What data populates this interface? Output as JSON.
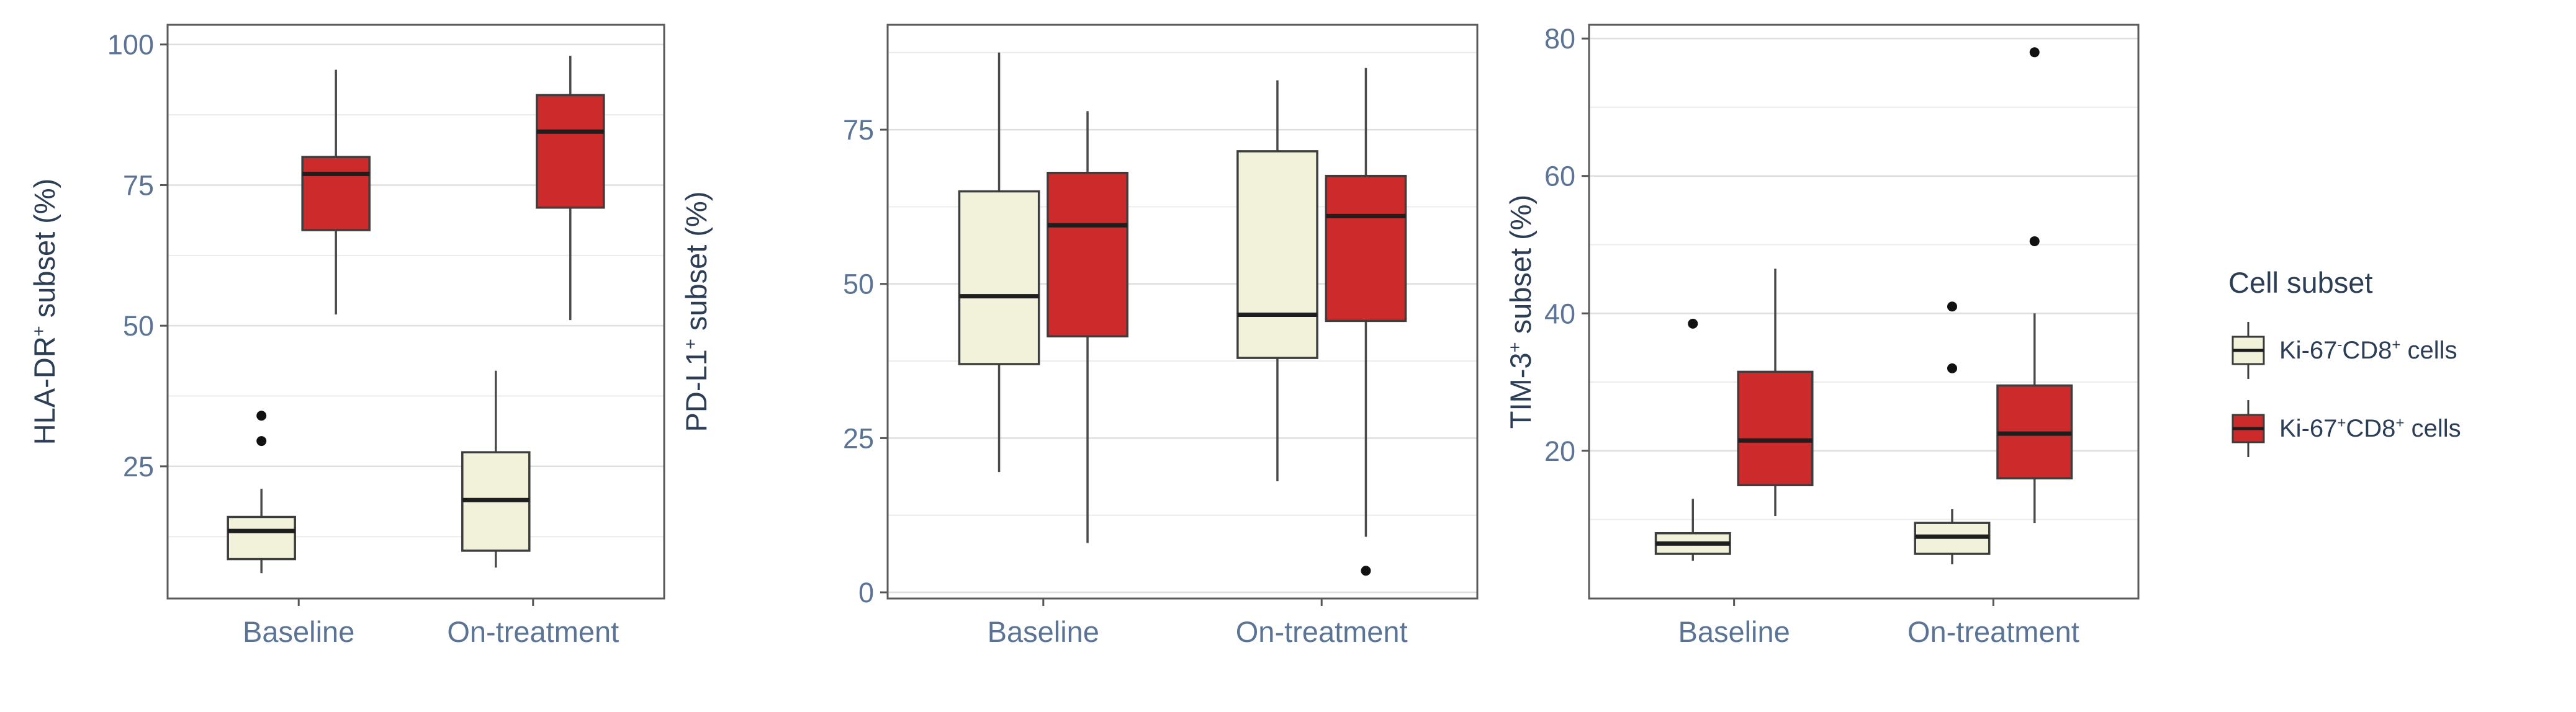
{
  "figure": {
    "background": "#ffffff",
    "x_axis_categories": [
      "Baseline",
      "On-treatment"
    ]
  },
  "colors": {
    "red_fill": "#cd2b2b",
    "cream_fill": "#f2f1da",
    "box_border": "#3d3d3d",
    "median_line": "#1e1e1e",
    "whisker": "#4a4a4a",
    "outlier": "#111111",
    "grid_major": "#dedede",
    "grid_minor": "#ececec",
    "panel_border": "#5a5a5a",
    "tick_text": "#5b7495",
    "title_text": "#2c3e55"
  },
  "legend": {
    "title": "Cell subset",
    "items": [
      {
        "fill_key": "cream_fill",
        "label_segments": [
          {
            "t": "Ki-67"
          },
          {
            "t": "-",
            "sup": true
          },
          {
            "t": "CD8"
          },
          {
            "t": "+",
            "sup": true
          },
          {
            "t": " cells"
          }
        ]
      },
      {
        "fill_key": "red_fill",
        "label_segments": [
          {
            "t": "Ki-67"
          },
          {
            "t": "+",
            "sup": true
          },
          {
            "t": "CD8"
          },
          {
            "t": "+",
            "sup": true
          },
          {
            "t": " cells"
          }
        ]
      }
    ]
  },
  "chart_data": [
    {
      "type": "box",
      "panel_key": "hla-dr",
      "title_segments": [
        {
          "t": "HLA-DR"
        },
        {
          "t": "+",
          "sup": true
        },
        {
          "t": " subset (%)"
        }
      ],
      "ylabel": "HLA-DR+ subset (%)",
      "categories": [
        "Baseline",
        "On-treatment"
      ],
      "yticks": [
        25,
        50,
        75,
        100
      ],
      "yticks_minor": [
        12.5,
        37.5,
        62.5,
        87.5
      ],
      "ylim": [
        1.5,
        103.5
      ],
      "grid": true,
      "legend_position": "right",
      "series": [
        {
          "name": "Ki-67- CD8+ cells",
          "fill_key": "cream_fill",
          "boxes": [
            {
              "lo": 6,
              "q1": 8.5,
              "med": 13.5,
              "q3": 16,
              "hi": 21,
              "outliers": [
                29.5,
                34
              ]
            },
            {
              "lo": 7,
              "q1": 10,
              "med": 19,
              "q3": 27.5,
              "hi": 42,
              "outliers": []
            }
          ]
        },
        {
          "name": "Ki-67+ CD8+ cells",
          "fill_key": "red_fill",
          "boxes": [
            {
              "lo": 52,
              "q1": 67,
              "med": 77,
              "q3": 80,
              "hi": 95.5,
              "outliers": []
            },
            {
              "lo": 51,
              "q1": 71,
              "med": 84.5,
              "q3": 91,
              "hi": 98,
              "outliers": []
            }
          ]
        }
      ]
    },
    {
      "type": "box",
      "panel_key": "pd-l1",
      "title_segments": [
        {
          "t": "PD-L1"
        },
        {
          "t": "+",
          "sup": true
        },
        {
          "t": " subset (%)"
        }
      ],
      "ylabel": "PD-L1+ subset (%)",
      "categories": [
        "Baseline",
        "On-treatment"
      ],
      "yticks": [
        0,
        25,
        50,
        75
      ],
      "yticks_minor": [
        12.5,
        37.5,
        62.5,
        87.5
      ],
      "ylim": [
        -1,
        92
      ],
      "grid": true,
      "legend_position": "right",
      "series": [
        {
          "name": "Ki-67- CD8+ cells",
          "fill_key": "cream_fill",
          "boxes": [
            {
              "lo": 19.5,
              "q1": 37,
              "med": 48,
              "q3": 65,
              "hi": 87.5,
              "outliers": []
            },
            {
              "lo": 18,
              "q1": 38,
              "med": 45,
              "q3": 71.5,
              "hi": 83,
              "outliers": []
            }
          ]
        },
        {
          "name": "Ki-67+ CD8+ cells",
          "fill_key": "red_fill",
          "boxes": [
            {
              "lo": 8,
              "q1": 41.5,
              "med": 59.5,
              "q3": 68,
              "hi": 78,
              "outliers": []
            },
            {
              "lo": 9,
              "q1": 44,
              "med": 61,
              "q3": 67.5,
              "hi": 85,
              "outliers": [
                3.5
              ]
            }
          ]
        }
      ]
    },
    {
      "type": "box",
      "panel_key": "tim-3",
      "title_segments": [
        {
          "t": "TIM-3"
        },
        {
          "t": "+",
          "sup": true
        },
        {
          "t": " subset (%)"
        }
      ],
      "ylabel": "TIM-3+ subset (%)",
      "categories": [
        "Baseline",
        "On-treatment"
      ],
      "yticks": [
        20,
        40,
        60,
        80
      ],
      "yticks_minor": [
        10,
        30,
        50,
        70
      ],
      "ylim": [
        -1.5,
        82
      ],
      "grid": true,
      "legend_position": "right",
      "series": [
        {
          "name": "Ki-67- CD8+ cells",
          "fill_key": "cream_fill",
          "boxes": [
            {
              "lo": 4,
              "q1": 5,
              "med": 6.5,
              "q3": 8,
              "hi": 13,
              "outliers": [
                38.5
              ]
            },
            {
              "lo": 3.5,
              "q1": 5,
              "med": 7.5,
              "q3": 9.5,
              "hi": 11.5,
              "outliers": [
                41,
                32
              ]
            }
          ]
        },
        {
          "name": "Ki-67+ CD8+ cells",
          "fill_key": "red_fill",
          "boxes": [
            {
              "lo": 10.5,
              "q1": 15,
              "med": 21.5,
              "q3": 31.5,
              "hi": 46.5,
              "outliers": []
            },
            {
              "lo": 9.5,
              "q1": 16,
              "med": 22.5,
              "q3": 29.5,
              "hi": 40,
              "outliers": [
                78,
                50.5
              ]
            }
          ]
        }
      ]
    }
  ]
}
